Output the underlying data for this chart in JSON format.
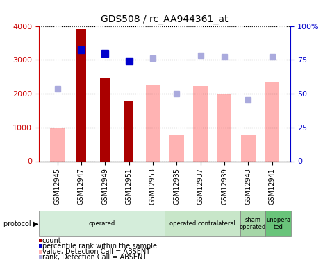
{
  "title": "GDS508 / rc_AA944361_at",
  "categories": [
    "GSM12945",
    "GSM12947",
    "GSM12949",
    "GSM12951",
    "GSM12953",
    "GSM12935",
    "GSM12937",
    "GSM12939",
    "GSM12943",
    "GSM12941"
  ],
  "red_bars": [
    null,
    3900,
    2450,
    1780,
    null,
    null,
    null,
    null,
    null,
    null
  ],
  "pink_bars": [
    1000,
    null,
    null,
    null,
    2270,
    770,
    2230,
    2000,
    770,
    2340
  ],
  "blue_squares": [
    null,
    3300,
    3180,
    2960,
    null,
    null,
    null,
    null,
    null,
    null
  ],
  "lightblue_squares": [
    2150,
    null,
    null,
    null,
    3050,
    2000,
    3120,
    3080,
    1820,
    3080
  ],
  "ylim_left": [
    0,
    4000
  ],
  "ylim_right": [
    0,
    100
  ],
  "ytick_labels_left": [
    "0",
    "1000",
    "2000",
    "3000",
    "4000"
  ],
  "ytick_labels_right": [
    "0",
    "25",
    "50",
    "75",
    "100%"
  ],
  "protocol_groups": [
    {
      "label": "operated",
      "start": 0,
      "end": 5,
      "color": "#d4edda"
    },
    {
      "label": "operated contralateral",
      "start": 5,
      "end": 8,
      "color": "#c8e6c9"
    },
    {
      "label": "sham\noperated",
      "start": 8,
      "end": 9,
      "color": "#a5d6a7"
    },
    {
      "label": "unopera\nted",
      "start": 9,
      "end": 10,
      "color": "#69c47a"
    }
  ],
  "legend_items": [
    {
      "label": "count",
      "color": "#aa0000"
    },
    {
      "label": "percentile rank within the sample",
      "color": "#0000cc"
    },
    {
      "label": "value, Detection Call = ABSENT",
      "color": "#ffb3b3"
    },
    {
      "label": "rank, Detection Call = ABSENT",
      "color": "#aaaadd"
    }
  ],
  "red_color": "#aa0000",
  "pink_color": "#ffb3b3",
  "blue_color": "#0000cc",
  "lightblue_color": "#aaaadd",
  "bg_color": "#ffffff",
  "left_label_color": "#cc0000",
  "right_label_color": "#0000cc"
}
